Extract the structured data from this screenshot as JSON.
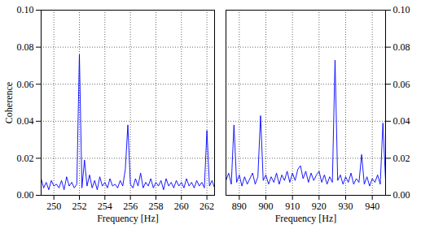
{
  "chart_data": [
    {
      "type": "line",
      "xlabel": "Frequency [Hz]",
      "ylabel": "Coherence",
      "color": "#0000ff",
      "grid": true,
      "xlim": [
        249.0,
        262.6
      ],
      "ylim": [
        0,
        0.1
      ],
      "xticks": [
        250,
        252,
        254,
        256,
        258,
        260,
        262
      ],
      "yticks": [
        {
          "value": 0,
          "label": "0.00"
        },
        {
          "value": 0.02,
          "label": "0.02"
        },
        {
          "value": 0.04,
          "label": "0.04"
        },
        {
          "value": 0.06,
          "label": "0.06"
        },
        {
          "value": 0.08,
          "label": "0.08"
        },
        {
          "value": 0.1,
          "label": "0.10"
        }
      ],
      "x": [
        249.0,
        249.2,
        249.4,
        249.6,
        249.8,
        250.0,
        250.2,
        250.4,
        250.6,
        250.8,
        251.0,
        251.2,
        251.4,
        251.6,
        251.8,
        252.0,
        252.2,
        252.4,
        252.6,
        252.8,
        253.0,
        253.2,
        253.4,
        253.6,
        253.8,
        254.0,
        254.2,
        254.4,
        254.6,
        254.8,
        255.0,
        255.2,
        255.4,
        255.6,
        255.8,
        256.0,
        256.2,
        256.4,
        256.6,
        256.8,
        257.0,
        257.2,
        257.4,
        257.6,
        257.8,
        258.0,
        258.2,
        258.4,
        258.6,
        258.8,
        259.0,
        259.2,
        259.4,
        259.6,
        259.8,
        260.0,
        260.2,
        260.4,
        260.6,
        260.8,
        261.0,
        261.2,
        261.4,
        261.6,
        261.8,
        262.0,
        262.2,
        262.4,
        262.6
      ],
      "values": [
        0.009,
        0.004,
        0.007,
        0.003,
        0.008,
        0.005,
        0.006,
        0.004,
        0.008,
        0.003,
        0.01,
        0.005,
        0.007,
        0.004,
        0.006,
        0.076,
        0.004,
        0.019,
        0.005,
        0.011,
        0.004,
        0.008,
        0.003,
        0.01,
        0.005,
        0.007,
        0.004,
        0.009,
        0.005,
        0.006,
        0.004,
        0.008,
        0.005,
        0.014,
        0.038,
        0.006,
        0.004,
        0.009,
        0.005,
        0.012,
        0.004,
        0.007,
        0.005,
        0.009,
        0.004,
        0.007,
        0.005,
        0.008,
        0.003,
        0.009,
        0.005,
        0.007,
        0.004,
        0.008,
        0.005,
        0.007,
        0.004,
        0.009,
        0.005,
        0.007,
        0.004,
        0.008,
        0.005,
        0.007,
        0.004,
        0.035,
        0.005,
        0.008,
        0.004
      ]
    },
    {
      "type": "line",
      "xlabel": "Frequency [Hz]",
      "color": "#0000ff",
      "grid": true,
      "xlim": [
        885,
        945
      ],
      "ylim": [
        0,
        0.1
      ],
      "xticks": [
        890,
        900,
        910,
        920,
        930,
        940
      ],
      "yticks": [
        {
          "value": 0,
          "label": "0.00"
        },
        {
          "value": 0.02,
          "label": "0.02"
        },
        {
          "value": 0.04,
          "label": "0.04"
        },
        {
          "value": 0.06,
          "label": "0.06"
        },
        {
          "value": 0.08,
          "label": "0.08"
        },
        {
          "value": 0.1,
          "label": "0.10"
        }
      ],
      "x": [
        885,
        886,
        887,
        888,
        889,
        890,
        891,
        892,
        893,
        894,
        895,
        896,
        897,
        898,
        899,
        900,
        901,
        902,
        903,
        904,
        905,
        906,
        907,
        908,
        909,
        910,
        911,
        912,
        913,
        914,
        915,
        916,
        917,
        918,
        919,
        920,
        921,
        922,
        923,
        924,
        925,
        926,
        927,
        928,
        929,
        930,
        931,
        932,
        933,
        934,
        935,
        936,
        937,
        938,
        939,
        940,
        941,
        942,
        943,
        944,
        945
      ],
      "values": [
        0.008,
        0.012,
        0.006,
        0.038,
        0.007,
        0.011,
        0.005,
        0.01,
        0.006,
        0.009,
        0.012,
        0.006,
        0.01,
        0.043,
        0.008,
        0.011,
        0.006,
        0.01,
        0.007,
        0.012,
        0.006,
        0.011,
        0.008,
        0.013,
        0.007,
        0.012,
        0.008,
        0.014,
        0.016,
        0.009,
        0.013,
        0.007,
        0.012,
        0.008,
        0.011,
        0.013,
        0.007,
        0.011,
        0.006,
        0.01,
        0.007,
        0.073,
        0.008,
        0.011,
        0.006,
        0.01,
        0.007,
        0.012,
        0.006,
        0.009,
        0.007,
        0.022,
        0.006,
        0.01,
        0.005,
        0.009,
        0.007,
        0.011,
        0.006,
        0.039,
        0.008
      ]
    }
  ]
}
